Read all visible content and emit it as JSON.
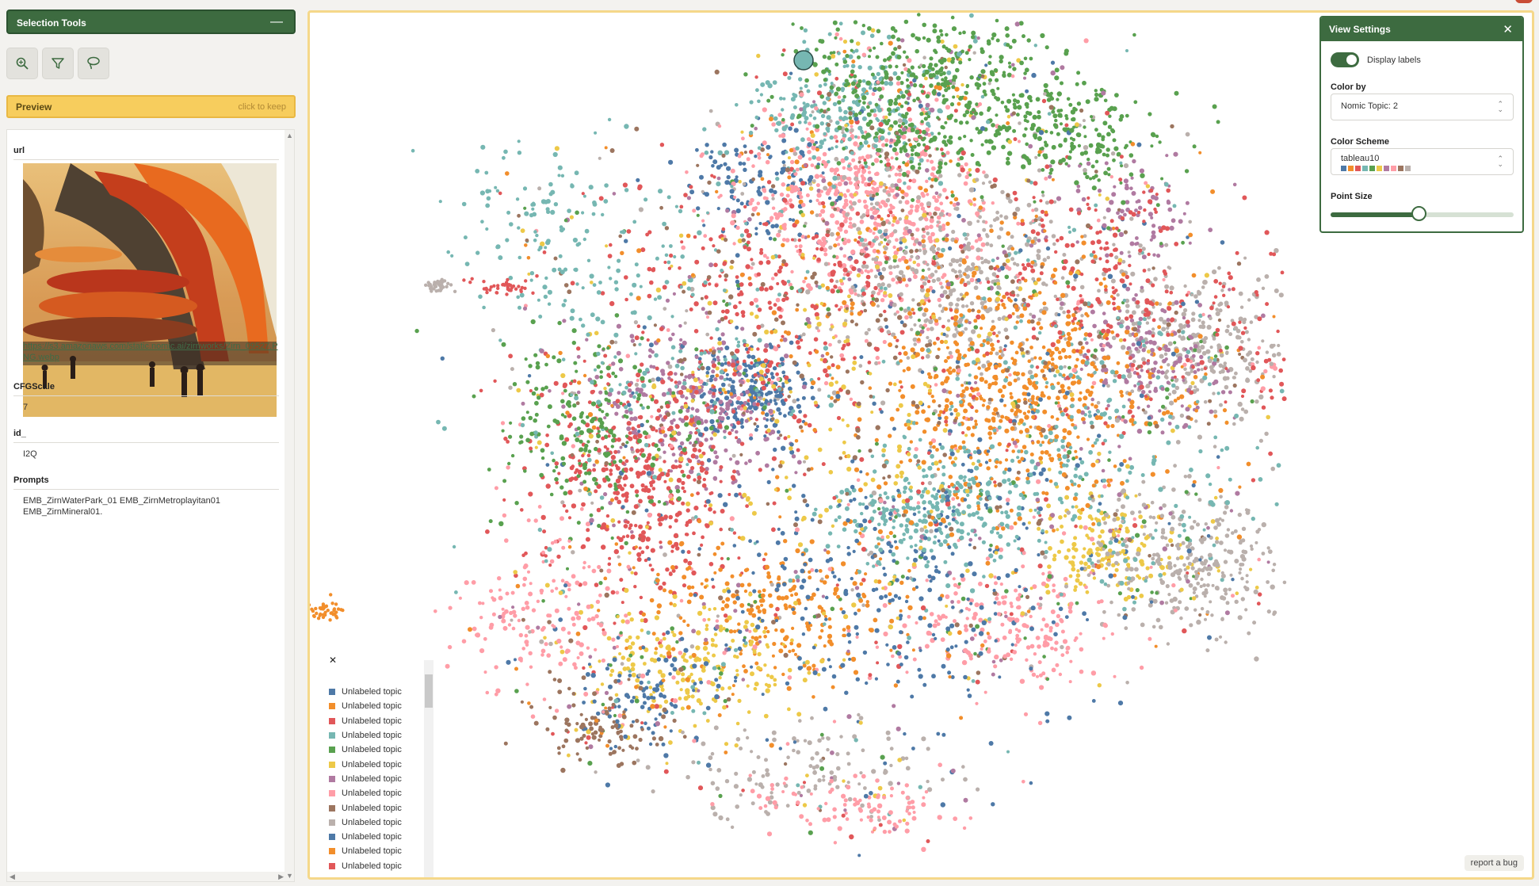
{
  "selection_tools": {
    "title": "Selection Tools",
    "collapse_symbol": "—",
    "tools": [
      {
        "name": "zoom-lasso",
        "icon": "magnify-icon"
      },
      {
        "name": "filter",
        "icon": "filter-icon"
      },
      {
        "name": "lasso",
        "icon": "lasso-icon"
      }
    ]
  },
  "preview": {
    "title": "Preview",
    "hint": "click to keep",
    "fields": {
      "url_label": "url",
      "url_value": "https://s3.amazonaws.com/static.nomic.ai/zirnworks/Zirn_09527.PNG.webp",
      "cfg_label": "CFGScale",
      "cfg_value": "7",
      "id_label": "id_",
      "id_value": "I2Q",
      "prompts_label": "Prompts",
      "prompts_value": "EMB_ZirnWaterPark_01 EMB_ZirnMetroplayitan01 EMB_ZirnMineral01."
    }
  },
  "view_settings": {
    "title": "View Settings",
    "close_symbol": "✕",
    "display_labels": "Display labels",
    "display_labels_on": true,
    "color_by_label": "Color by",
    "color_by_value": "Nomic Topic: 2",
    "color_scheme_label": "Color Scheme",
    "color_scheme_value": "tableau10",
    "point_size_label": "Point Size",
    "point_size_fraction": 0.48
  },
  "palette": [
    "#4e79a7",
    "#f28e2b",
    "#e15759",
    "#76b7b2",
    "#59a14f",
    "#edc948",
    "#b07aa1",
    "#ff9da7",
    "#9c755f",
    "#bab0ac"
  ],
  "legend": {
    "close_symbol": "✕",
    "items": [
      {
        "label": "Unlabeled topic",
        "color": "#4e79a7"
      },
      {
        "label": "Unlabeled topic",
        "color": "#f28e2b"
      },
      {
        "label": "Unlabeled topic",
        "color": "#e15759"
      },
      {
        "label": "Unlabeled topic",
        "color": "#76b7b2"
      },
      {
        "label": "Unlabeled topic",
        "color": "#59a14f"
      },
      {
        "label": "Unlabeled topic",
        "color": "#edc948"
      },
      {
        "label": "Unlabeled topic",
        "color": "#b07aa1"
      },
      {
        "label": "Unlabeled topic",
        "color": "#ff9da7"
      },
      {
        "label": "Unlabeled topic",
        "color": "#9c755f"
      },
      {
        "label": "Unlabeled topic",
        "color": "#bab0ac"
      },
      {
        "label": "Unlabeled topic",
        "color": "#4e79a7"
      },
      {
        "label": "Unlabeled topic",
        "color": "#f28e2b"
      },
      {
        "label": "Unlabeled topic",
        "color": "#e15759"
      }
    ]
  },
  "report_bug": "report a bug"
}
